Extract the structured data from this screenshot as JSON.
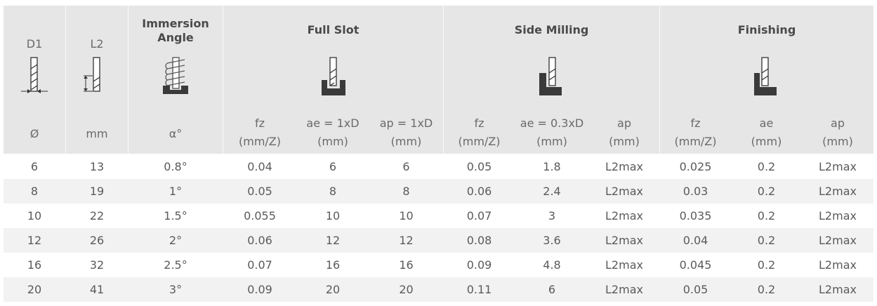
{
  "header": {
    "d1": "D1",
    "l2": "L2",
    "immersion": "Immersion\nAngle",
    "groups": [
      "Full Slot",
      "Side Milling",
      "Finishing"
    ],
    "sub": [
      "Ø",
      "mm",
      "α°",
      "fz\n(mm/Z)",
      "ae = 1xD\n(mm)",
      "ap = 1xD\n(mm)",
      "fz\n(mm/Z)",
      "ae = 0.3xD\n(mm)",
      "ap\n(mm)",
      "fz\n(mm/Z)",
      "ae\n(mm)",
      "ap\n(mm)"
    ]
  },
  "rows": [
    [
      "6",
      "13",
      "0.8°",
      "0.04",
      "6",
      "6",
      "0.05",
      "1.8",
      "L2max",
      "0.025",
      "0.2",
      "L2max"
    ],
    [
      "8",
      "19",
      "1°",
      "0.05",
      "8",
      "8",
      "0.06",
      "2.4",
      "L2max",
      "0.03",
      "0.2",
      "L2max"
    ],
    [
      "10",
      "22",
      "1.5°",
      "0.055",
      "10",
      "10",
      "0.07",
      "3",
      "L2max",
      "0.035",
      "0.2",
      "L2max"
    ],
    [
      "12",
      "26",
      "2°",
      "0.06",
      "12",
      "12",
      "0.08",
      "3.6",
      "L2max",
      "0.04",
      "0.2",
      "L2max"
    ],
    [
      "16",
      "32",
      "2.5°",
      "0.07",
      "16",
      "16",
      "0.09",
      "4.8",
      "L2max",
      "0.045",
      "0.2",
      "L2max"
    ],
    [
      "20",
      "41",
      "3°",
      "0.09",
      "20",
      "20",
      "0.11",
      "6",
      "L2max",
      "0.05",
      "0.2",
      "L2max"
    ]
  ],
  "icons": [
    "d1-diameter-icon",
    "l2-length-icon",
    "immersion-angle-icon",
    "full-slot-icon",
    "side-milling-icon",
    "finishing-icon"
  ]
}
